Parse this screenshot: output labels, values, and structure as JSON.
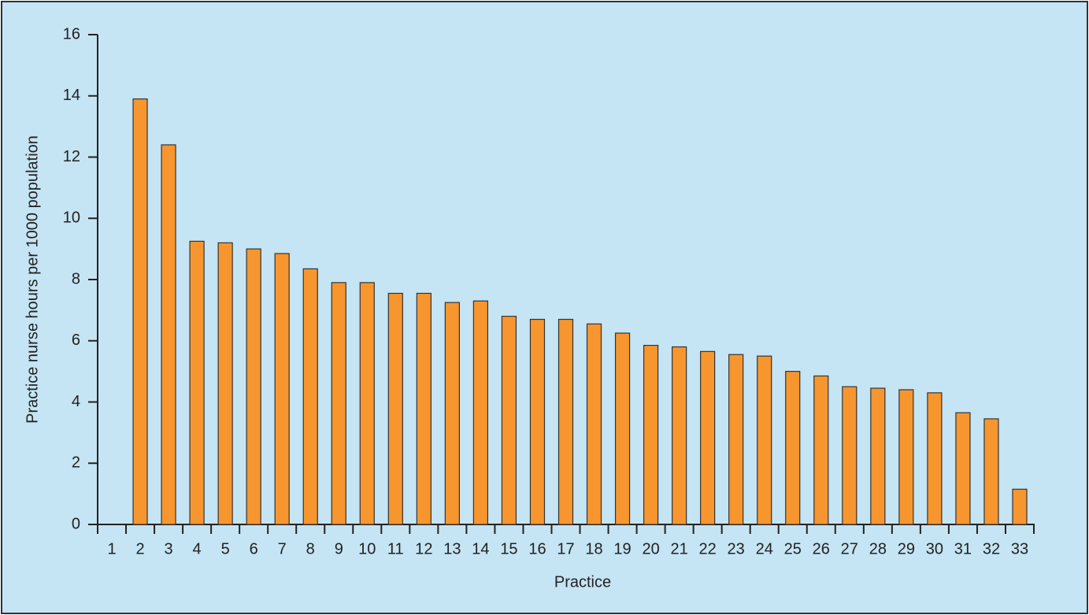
{
  "chart_data": {
    "type": "bar",
    "xlabel": "Practice",
    "ylabel": "Practice nurse hours per 1000 population",
    "categories": [
      "1",
      "2",
      "3",
      "4",
      "5",
      "6",
      "7",
      "8",
      "9",
      "10",
      "11",
      "12",
      "13",
      "14",
      "15",
      "16",
      "17",
      "18",
      "19",
      "20",
      "21",
      "22",
      "23",
      "24",
      "25",
      "26",
      "27",
      "28",
      "29",
      "30",
      "31",
      "32",
      "33"
    ],
    "values": [
      null,
      13.9,
      12.4,
      9.25,
      9.2,
      9.0,
      8.85,
      8.35,
      7.9,
      7.9,
      7.55,
      7.55,
      7.25,
      7.3,
      6.8,
      6.7,
      6.7,
      6.55,
      6.25,
      5.85,
      5.8,
      5.65,
      5.55,
      5.5,
      5.0,
      4.85,
      4.5,
      4.45,
      4.4,
      4.3,
      3.65,
      3.45,
      1.15
    ],
    "color": "#f7962f",
    "ylim": [
      0,
      16
    ],
    "yticks": [
      0,
      2,
      4,
      6,
      8,
      10,
      12,
      14,
      16
    ]
  }
}
